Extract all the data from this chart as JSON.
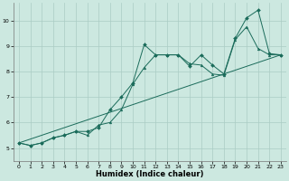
{
  "xlabel": "Humidex (Indice chaleur)",
  "background_color": "#cce8e0",
  "grid_color": "#aaccc4",
  "line_color": "#1a6b5a",
  "xlim": [
    -0.5,
    23.5
  ],
  "ylim": [
    4.5,
    10.7
  ],
  "xticks": [
    0,
    1,
    2,
    3,
    4,
    5,
    6,
    7,
    8,
    9,
    10,
    11,
    12,
    13,
    14,
    15,
    16,
    17,
    18,
    19,
    20,
    21,
    22,
    23
  ],
  "yticks": [
    5,
    6,
    7,
    8,
    9,
    10
  ],
  "line1_x": [
    0,
    1,
    2,
    3,
    4,
    5,
    6,
    7,
    8,
    9,
    10,
    11,
    12,
    13,
    14,
    15,
    16,
    17,
    18,
    19,
    20,
    21,
    22,
    23
  ],
  "line1_y": [
    5.2,
    5.1,
    5.2,
    5.4,
    5.5,
    5.65,
    5.65,
    5.8,
    6.5,
    7.0,
    7.55,
    9.05,
    8.65,
    8.65,
    8.65,
    8.2,
    8.65,
    8.25,
    7.9,
    9.3,
    10.1,
    10.4,
    8.7,
    8.65
  ],
  "line2_x": [
    0,
    1,
    2,
    3,
    4,
    5,
    6,
    7,
    8,
    9,
    10,
    11,
    12,
    13,
    14,
    15,
    16,
    17,
    18,
    19,
    20,
    21,
    22,
    23
  ],
  "line2_y": [
    5.2,
    5.1,
    5.2,
    5.4,
    5.5,
    5.65,
    5.5,
    5.9,
    6.0,
    6.5,
    7.5,
    8.15,
    8.65,
    8.65,
    8.65,
    8.3,
    8.25,
    7.9,
    7.85,
    9.25,
    9.75,
    8.9,
    8.65,
    8.65
  ],
  "line3_x": [
    0,
    23
  ],
  "line3_y": [
    5.2,
    8.65
  ]
}
